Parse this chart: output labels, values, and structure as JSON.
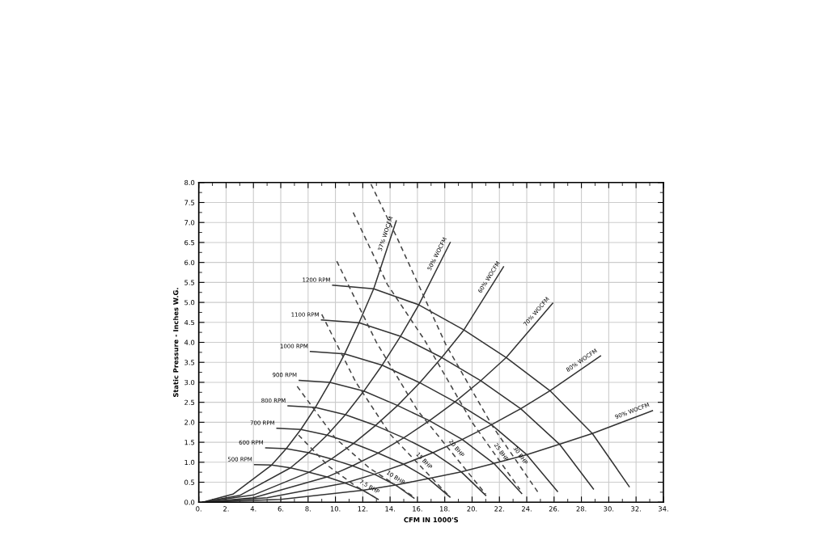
{
  "chart_data": {
    "type": "line",
    "xlabel": "CFM IN 1000'S",
    "ylabel": "Static Pressure - Inches W.G.",
    "xlim": [
      0,
      34
    ],
    "ylim": [
      0,
      8
    ],
    "xticks": [
      {
        "value": 0,
        "label": "0."
      },
      {
        "value": 2,
        "label": "2."
      },
      {
        "value": 4,
        "label": "4."
      },
      {
        "value": 6,
        "label": "6."
      },
      {
        "value": 8,
        "label": "8."
      },
      {
        "value": 10,
        "label": "10."
      },
      {
        "value": 12,
        "label": "12."
      },
      {
        "value": 14,
        "label": "14."
      },
      {
        "value": 16,
        "label": "16."
      },
      {
        "value": 18,
        "label": "18."
      },
      {
        "value": 20,
        "label": "20."
      },
      {
        "value": 22,
        "label": "22."
      },
      {
        "value": 24,
        "label": "24."
      },
      {
        "value": 26,
        "label": "26."
      },
      {
        "value": 28,
        "label": "28."
      },
      {
        "value": 30,
        "label": "30."
      },
      {
        "value": 32,
        "label": "32."
      },
      {
        "value": 34,
        "label": "34."
      }
    ],
    "yticks": [
      {
        "value": 0,
        "label": "0.0"
      },
      0.5,
      {
        "value": 1,
        "label": "1.0"
      },
      1.5,
      {
        "value": 2,
        "label": "2.0"
      },
      2.5,
      {
        "value": 3,
        "label": "3.0"
      },
      3.5,
      {
        "value": 4,
        "label": "4.0"
      },
      4.5,
      {
        "value": 5,
        "label": "5.0"
      },
      5.5,
      {
        "value": 6,
        "label": "6.0"
      },
      6.5,
      {
        "value": 7,
        "label": "7.0"
      },
      7.5,
      {
        "value": 8,
        "label": "8.0"
      }
    ],
    "grid": true,
    "marker": "none",
    "legend": false,
    "series": [
      {
        "name": "1200 RPM",
        "color": "#333333",
        "line_style": "solid",
        "x": [
          9.8,
          12.8,
          16.1,
          19.4,
          22.5,
          25.7,
          28.8,
          31.5
        ],
        "values": [
          5.43,
          5.34,
          4.94,
          4.31,
          3.62,
          2.79,
          1.72,
          0.39
        ]
      },
      {
        "name": "1100 RPM",
        "color": "#333333",
        "line_style": "solid",
        "x": [
          8.98,
          11.73,
          14.76,
          17.78,
          20.63,
          23.56,
          26.4,
          28.88
        ],
        "values": [
          4.56,
          4.49,
          4.15,
          3.62,
          3.04,
          2.34,
          1.45,
          0.33
        ]
      },
      {
        "name": "1000 RPM",
        "color": "#333333",
        "line_style": "solid",
        "x": [
          8.17,
          10.67,
          13.42,
          16.17,
          18.75,
          21.42,
          24.0,
          26.25
        ],
        "values": [
          3.77,
          3.71,
          3.43,
          2.99,
          2.51,
          1.94,
          1.19,
          0.27
        ]
      },
      {
        "name": "900 RPM",
        "color": "#333333",
        "line_style": "solid",
        "x": [
          7.35,
          9.6,
          12.08,
          14.55,
          16.88,
          19.28,
          21.6,
          23.63
        ],
        "values": [
          3.05,
          3.0,
          2.78,
          2.42,
          2.04,
          1.57,
          0.97,
          0.22
        ]
      },
      {
        "name": "800 RPM",
        "color": "#333333",
        "line_style": "solid",
        "x": [
          6.53,
          8.53,
          10.73,
          12.93,
          15.0,
          17.13,
          19.2,
          21.0
        ],
        "values": [
          2.41,
          2.37,
          2.19,
          1.92,
          1.61,
          1.24,
          0.76,
          0.17
        ]
      },
      {
        "name": "700 RPM",
        "color": "#333333",
        "line_style": "solid",
        "x": [
          5.72,
          7.47,
          9.39,
          11.32,
          13.13,
          14.99,
          16.8,
          18.38
        ],
        "values": [
          1.85,
          1.82,
          1.68,
          1.47,
          1.23,
          0.95,
          0.59,
          0.13
        ]
      },
      {
        "name": "600 RPM",
        "color": "#333333",
        "line_style": "solid",
        "x": [
          4.9,
          6.4,
          8.05,
          9.7,
          11.25,
          12.85,
          14.4,
          15.75
        ],
        "values": [
          1.36,
          1.34,
          1.24,
          1.08,
          0.91,
          0.7,
          0.43,
          0.1
        ]
      },
      {
        "name": "500 RPM",
        "color": "#333333",
        "line_style": "solid",
        "x": [
          4.08,
          5.33,
          6.71,
          8.08,
          9.38,
          10.71,
          12.0,
          13.13
        ],
        "values": [
          0.94,
          0.93,
          0.86,
          0.75,
          0.63,
          0.48,
          0.3,
          0.07
        ]
      },
      {
        "name": "37% WOCFM",
        "color": "#333333",
        "line_style": "solid",
        "x": [
          0.3,
          2.5,
          5.33,
          6.4,
          7.47,
          8.53,
          9.6,
          10.67,
          11.73,
          12.8,
          14.45
        ],
        "values": [
          0,
          0.2,
          0.93,
          1.34,
          1.82,
          2.37,
          3.0,
          3.71,
          4.49,
          5.34,
          7.04
        ]
      },
      {
        "name": "50% WOCFM",
        "color": "#333333",
        "line_style": "solid",
        "x": [
          0.3,
          3,
          6.71,
          8.05,
          9.39,
          10.73,
          12.08,
          13.42,
          14.76,
          16.1,
          18.4
        ],
        "values": [
          0,
          0.17,
          0.86,
          1.24,
          1.68,
          2.19,
          2.78,
          3.43,
          4.15,
          4.94,
          6.5
        ]
      },
      {
        "name": "60% WOCFM",
        "color": "#333333",
        "line_style": "solid",
        "x": [
          0.3,
          4,
          8.08,
          9.7,
          11.32,
          12.93,
          14.55,
          16.17,
          17.78,
          19.4,
          22.3
        ],
        "values": [
          0,
          0.18,
          0.75,
          1.08,
          1.47,
          1.92,
          2.42,
          2.99,
          3.62,
          4.31,
          5.89
        ]
      },
      {
        "name": "70% WOCFM",
        "color": "#333333",
        "line_style": "solid",
        "x": [
          0.3,
          4,
          9.38,
          11.25,
          13.13,
          15.0,
          16.88,
          18.75,
          20.63,
          22.5,
          25.9
        ],
        "values": [
          0,
          0.11,
          0.63,
          0.91,
          1.23,
          1.61,
          2.04,
          2.51,
          3.04,
          3.62,
          4.98
        ]
      },
      {
        "name": "80% WOCFM",
        "color": "#333333",
        "line_style": "solid",
        "x": [
          0.3,
          5,
          10.71,
          12.85,
          14.99,
          17.13,
          19.28,
          21.42,
          23.56,
          25.7,
          29.4
        ],
        "values": [
          0,
          0.11,
          0.48,
          0.7,
          0.95,
          1.24,
          1.57,
          1.94,
          2.34,
          2.79,
          3.66
        ]
      },
      {
        "name": "90% WOCFM",
        "color": "#333333",
        "line_style": "solid",
        "x": [
          0.3,
          6,
          12.0,
          14.4,
          16.8,
          19.2,
          21.6,
          24.0,
          26.4,
          28.8,
          33.2
        ],
        "values": [
          0,
          0.07,
          0.3,
          0.43,
          0.59,
          0.76,
          0.97,
          1.19,
          1.45,
          1.72,
          2.29
        ]
      },
      {
        "name": "30 BHP",
        "color": "#444444",
        "line_style": "dashed",
        "x": [
          12.6,
          14.45,
          18.1,
          21.5,
          24.8
        ],
        "values": [
          7.96,
          6.66,
          3.93,
          1.9,
          0.26
        ]
      },
      {
        "name": "25 BHP",
        "color": "#444444",
        "line_style": "dashed",
        "x": [
          11.3,
          13.8,
          16.5,
          20,
          23.5
        ],
        "values": [
          7.25,
          5.45,
          4.07,
          2.0,
          0.32
        ]
      },
      {
        "name": "20 BHP",
        "color": "#444444",
        "line_style": "dashed",
        "x": [
          10.1,
          13,
          16,
          21
        ],
        "values": [
          6.03,
          4.0,
          2.3,
          0.2
        ]
      },
      {
        "name": "15 BHP",
        "color": "#444444",
        "line_style": "dashed",
        "x": [
          9.0,
          11.5,
          14,
          18.3
        ],
        "values": [
          4.7,
          3.0,
          1.7,
          0.16
        ]
      },
      {
        "name": "10 BHP",
        "color": "#444444",
        "line_style": "dashed",
        "x": [
          7.2,
          10,
          12.5,
          15.8
        ],
        "values": [
          2.9,
          1.6,
          0.85,
          0.12
        ]
      },
      {
        "name": "7.5 BHP",
        "color": "#444444",
        "line_style": "dashed",
        "x": [
          7.3,
          9.5,
          11.5,
          13.0
        ],
        "values": [
          1.68,
          0.9,
          0.4,
          0.1
        ]
      }
    ]
  }
}
